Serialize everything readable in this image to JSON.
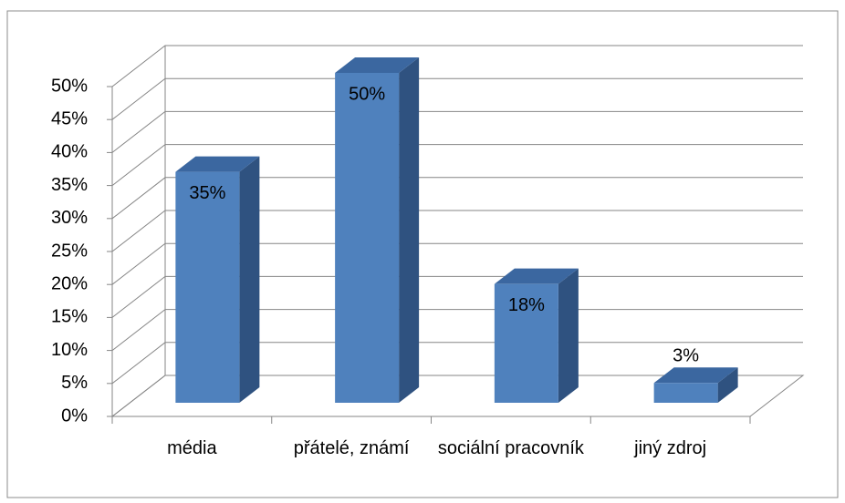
{
  "chart_data": {
    "type": "bar3d",
    "categories": [
      "média",
      "přátelé, známí",
      "sociální pracovník",
      "jiný zdroj"
    ],
    "values": [
      35,
      50,
      18,
      3
    ],
    "value_labels": [
      "35%",
      "50%",
      "18%",
      "3%"
    ],
    "color": "#4f81bd",
    "ylim": [
      0,
      50
    ],
    "yticks": [
      {
        "value": 0,
        "label": "0%"
      },
      {
        "value": 5,
        "label": "5%"
      },
      {
        "value": 10,
        "label": "10%"
      },
      {
        "value": 15,
        "label": "15%"
      },
      {
        "value": 20,
        "label": "20%"
      },
      {
        "value": 25,
        "label": "25%"
      },
      {
        "value": 30,
        "label": "30%"
      },
      {
        "value": 35,
        "label": "35%"
      },
      {
        "value": 40,
        "label": "40%"
      },
      {
        "value": 45,
        "label": "45%"
      },
      {
        "value": 50,
        "label": "50%"
      }
    ],
    "grid": true
  }
}
